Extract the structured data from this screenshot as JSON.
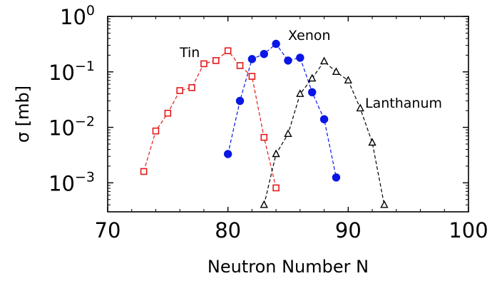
{
  "chart_data": {
    "type": "scatter",
    "xlabel": "Neutron Number N",
    "ylabel": "σ [mb]",
    "xlim": [
      70,
      100
    ],
    "ylim": [
      0.0003,
      1
    ],
    "y_scale": "log",
    "x_ticks": [
      {
        "value": 70,
        "label": "70"
      },
      {
        "value": 80,
        "label": "80"
      },
      {
        "value": 90,
        "label": "90"
      },
      {
        "value": 100,
        "label": "100"
      }
    ],
    "y_ticks": [
      {
        "value": 0.001,
        "base": "10",
        "exp": "−3"
      },
      {
        "value": 0.01,
        "base": "10",
        "exp": "−2"
      },
      {
        "value": 0.1,
        "base": "10",
        "exp": "−1"
      },
      {
        "value": 1,
        "base": "10",
        "exp": "0"
      }
    ],
    "grid": false,
    "series": [
      {
        "name": "Tin",
        "color": "#e31a1c",
        "marker": "square-open",
        "line": "dashed",
        "x": [
          73,
          74,
          75,
          76,
          77,
          78,
          79,
          80,
          81,
          82,
          83,
          84
        ],
        "y": [
          0.0016,
          0.0086,
          0.018,
          0.046,
          0.052,
          0.14,
          0.16,
          0.24,
          0.13,
          0.083,
          0.0066,
          0.00081
        ]
      },
      {
        "name": "Xenon",
        "color": "#0a16e6",
        "marker": "circle-filled",
        "line": "dashed",
        "x": [
          80,
          81,
          82,
          83,
          84,
          85,
          86,
          87,
          88,
          89
        ],
        "y": [
          0.0033,
          0.03,
          0.17,
          0.21,
          0.32,
          0.16,
          0.18,
          0.043,
          0.014,
          0.00125
        ]
      },
      {
        "name": "Lanthanum",
        "color": "#000000",
        "marker": "triangle-open",
        "line": "dashed",
        "x": [
          83,
          84,
          85,
          86,
          87,
          88,
          89,
          90,
          91,
          92,
          93
        ],
        "y": [
          0.0004,
          0.0033,
          0.0076,
          0.04,
          0.076,
          0.155,
          0.1,
          0.07,
          0.022,
          0.0053,
          0.0004
        ]
      }
    ]
  }
}
